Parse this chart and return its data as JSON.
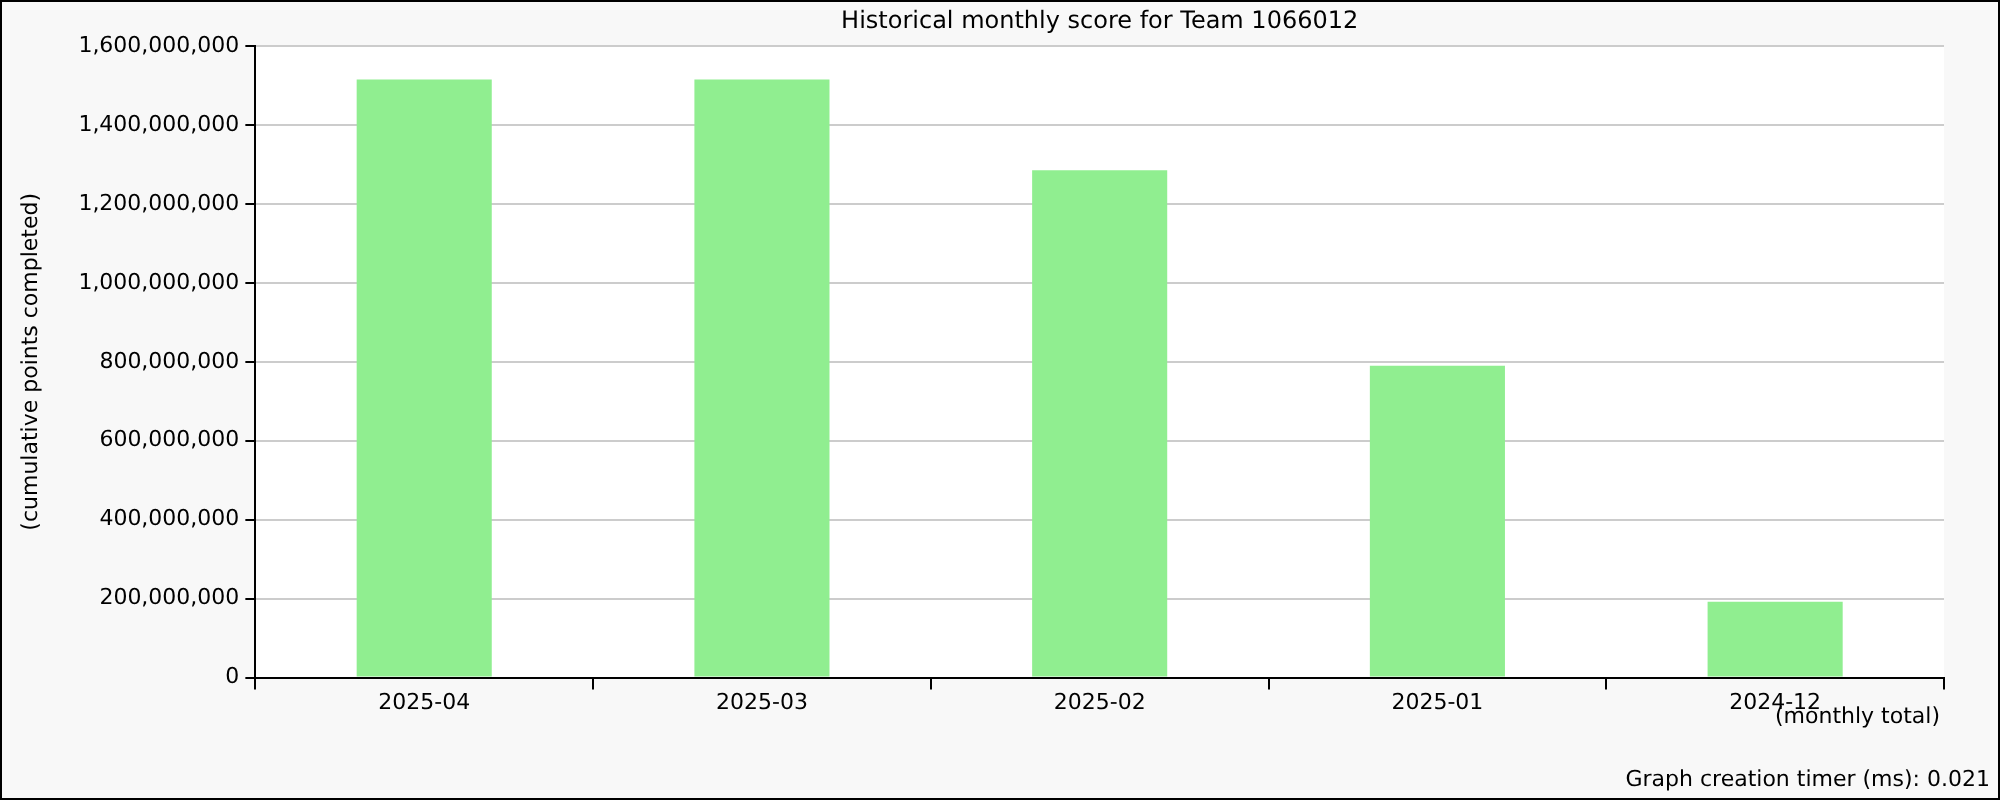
{
  "chart_data": {
    "type": "bar",
    "title": "Historical monthly score for Team 1066012",
    "xlabel": "(monthly total)",
    "ylabel": "(cumulative points completed)",
    "categories": [
      "2025-04",
      "2025-03",
      "2025-02",
      "2025-01",
      "2024-12"
    ],
    "values": [
      1515000000,
      1515000000,
      1285000000,
      790000000,
      192000000
    ],
    "color": "#90ee90",
    "ylim": [
      0,
      1600000000
    ],
    "yticks": [
      0,
      {
        "value": 200000000,
        "label": "200,000,000"
      },
      {
        "value": 400000000,
        "label": "400,000,000"
      },
      {
        "value": 600000000,
        "label": "600,000,000"
      },
      {
        "value": 800000000,
        "label": "800,000,000"
      },
      {
        "value": 1000000000,
        "label": "1,000,000,000"
      },
      {
        "value": 1200000000,
        "label": "1,200,000,000"
      },
      {
        "value": 1400000000,
        "label": "1,400,000,000"
      },
      {
        "value": 1600000000,
        "label": "1,600,000,000"
      }
    ],
    "grid": "y",
    "legend": false,
    "annotations": [
      "Graph creation timer (ms): 0.021"
    ]
  }
}
